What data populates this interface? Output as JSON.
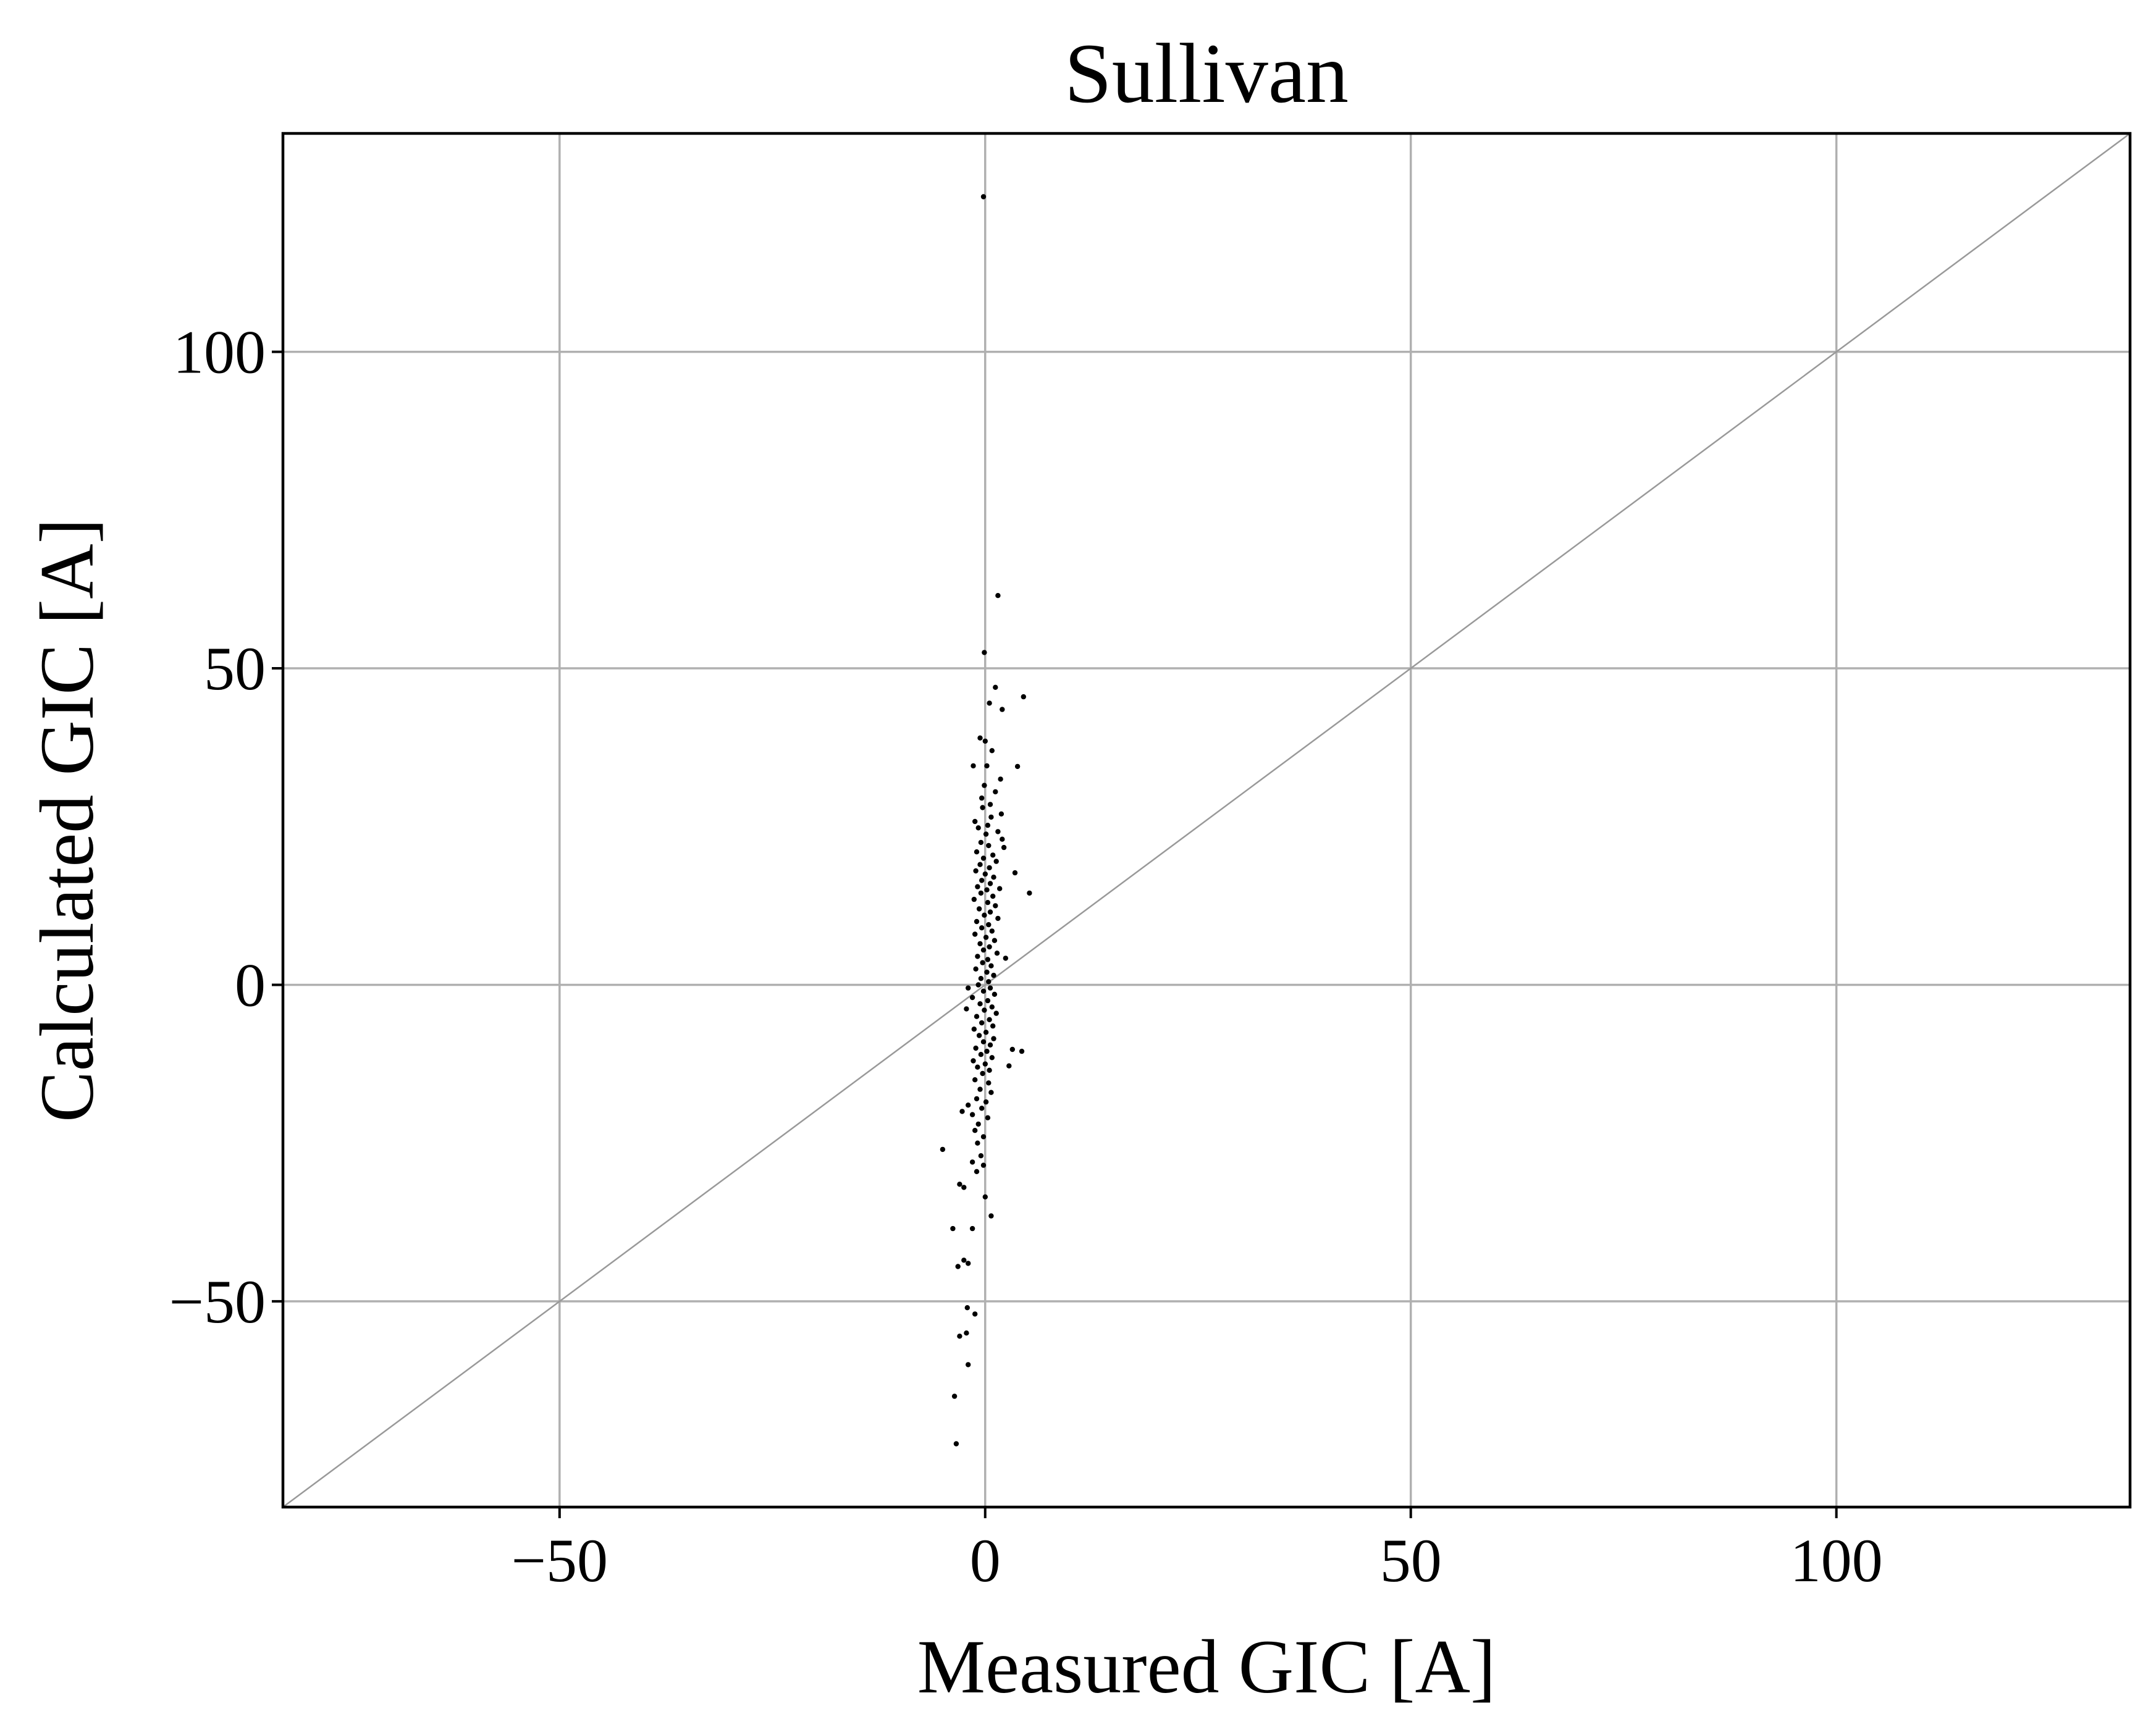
{
  "chart_data": {
    "type": "scatter",
    "title": "Sullivan",
    "xlabel": "Measured GIC [A]",
    "ylabel": "Calculated GIC [A]",
    "xlim": [
      -82.5,
      134.5
    ],
    "ylim": [
      -82.5,
      134.5
    ],
    "xticks": [
      -50,
      0,
      50,
      100
    ],
    "yticks": [
      -50,
      0,
      50,
      100
    ],
    "xtick_labels": [
      "−50",
      "0",
      "50",
      "100"
    ],
    "ytick_labels": [
      "−50",
      "0",
      "50",
      "100"
    ],
    "grid": true,
    "reference_line": {
      "type": "y=x",
      "color": "#999999"
    },
    "series": [
      {
        "marker_color": "#000000",
        "points": [
          [
            -0.2,
            124.5
          ],
          [
            1.5,
            61.5
          ],
          [
            -0.1,
            52.5
          ],
          [
            1.2,
            47.0
          ],
          [
            4.5,
            45.5
          ],
          [
            0.5,
            44.5
          ],
          [
            2.0,
            43.5
          ],
          [
            -0.6,
            39.0
          ],
          [
            0.0,
            38.5
          ],
          [
            0.8,
            37.0
          ],
          [
            3.8,
            34.5
          ],
          [
            -1.4,
            34.6
          ],
          [
            0.2,
            34.6
          ],
          [
            1.8,
            32.5
          ],
          [
            -0.1,
            31.5
          ],
          [
            1.2,
            30.5
          ],
          [
            -0.4,
            29.5
          ],
          [
            0.6,
            28.5
          ],
          [
            -0.3,
            28.0
          ],
          [
            1.9,
            27.0
          ],
          [
            0.7,
            26.5
          ],
          [
            -1.2,
            25.8
          ],
          [
            0.3,
            25.2
          ],
          [
            -0.8,
            24.8
          ],
          [
            1.5,
            24.2
          ],
          [
            0.1,
            23.8
          ],
          [
            2.0,
            23.0
          ],
          [
            -0.5,
            22.5
          ],
          [
            0.4,
            22.0
          ],
          [
            2.2,
            21.7
          ],
          [
            -1.0,
            21.0
          ],
          [
            0.9,
            20.5
          ],
          [
            -0.2,
            20.0
          ],
          [
            1.3,
            19.5
          ],
          [
            -0.6,
            19.0
          ],
          [
            0.5,
            18.5
          ],
          [
            -1.1,
            18.0
          ],
          [
            3.5,
            17.7
          ],
          [
            0.0,
            17.5
          ],
          [
            1.0,
            17.0
          ],
          [
            -0.4,
            16.5
          ],
          [
            0.6,
            16.0
          ],
          [
            -0.9,
            15.5
          ],
          [
            1.7,
            15.2
          ],
          [
            0.2,
            15.0
          ],
          [
            5.2,
            14.5
          ],
          [
            -0.5,
            14.5
          ],
          [
            0.9,
            14.0
          ],
          [
            -1.3,
            13.5
          ],
          [
            0.3,
            13.0
          ],
          [
            1.2,
            12.5
          ],
          [
            -0.7,
            12.0
          ],
          [
            0.6,
            11.5
          ],
          [
            -0.1,
            11.0
          ],
          [
            1.5,
            10.5
          ],
          [
            -1.0,
            10.0
          ],
          [
            0.4,
            9.5
          ],
          [
            -0.4,
            9.0
          ],
          [
            0.8,
            8.5
          ],
          [
            -1.2,
            8.0
          ],
          [
            0.1,
            7.5
          ],
          [
            1.1,
            7.0
          ],
          [
            -0.6,
            6.5
          ],
          [
            0.5,
            6.0
          ],
          [
            -0.2,
            5.5
          ],
          [
            1.4,
            5.0
          ],
          [
            -0.9,
            4.5
          ],
          [
            0.3,
            4.0
          ],
          [
            2.4,
            4.2
          ],
          [
            -0.3,
            3.5
          ],
          [
            0.7,
            3.0
          ],
          [
            -1.1,
            2.5
          ],
          [
            0.2,
            2.0
          ],
          [
            1.0,
            1.5
          ],
          [
            -0.5,
            1.0
          ],
          [
            0.4,
            0.5
          ],
          [
            -2.0,
            -0.5
          ],
          [
            -0.8,
            0.0
          ],
          [
            0.6,
            -0.5
          ],
          [
            -0.2,
            -1.0
          ],
          [
            1.1,
            -1.5
          ],
          [
            -1.5,
            -2.0
          ],
          [
            0.3,
            -2.5
          ],
          [
            -0.6,
            -3.0
          ],
          [
            0.8,
            -3.5
          ],
          [
            -2.2,
            -3.8
          ],
          [
            -0.1,
            -4.0
          ],
          [
            1.3,
            -4.5
          ],
          [
            -1.0,
            -5.0
          ],
          [
            0.5,
            -5.5
          ],
          [
            -0.4,
            -6.0
          ],
          [
            0.9,
            -6.5
          ],
          [
            -1.3,
            -7.0
          ],
          [
            0.1,
            -7.5
          ],
          [
            -0.7,
            -8.0
          ],
          [
            1.0,
            -8.5
          ],
          [
            -0.2,
            -9.0
          ],
          [
            0.6,
            -9.5
          ],
          [
            -1.1,
            -10.0
          ],
          [
            3.2,
            -10.2
          ],
          [
            4.3,
            -10.5
          ],
          [
            0.2,
            -10.5
          ],
          [
            -0.5,
            -11.0
          ],
          [
            0.8,
            -11.5
          ],
          [
            -1.4,
            -12.0
          ],
          [
            0.0,
            -12.5
          ],
          [
            2.8,
            -12.8
          ],
          [
            -0.9,
            -13.0
          ],
          [
            0.5,
            -13.5
          ],
          [
            -0.3,
            -14.0
          ],
          [
            -1.2,
            -15.0
          ],
          [
            0.4,
            -15.5
          ],
          [
            -0.6,
            -16.5
          ],
          [
            0.7,
            -17.0
          ],
          [
            -1.0,
            -18.0
          ],
          [
            0.1,
            -18.5
          ],
          [
            -2.0,
            -19.0
          ],
          [
            -0.4,
            -19.5
          ],
          [
            -2.7,
            -20.0
          ],
          [
            -1.5,
            -20.5
          ],
          [
            0.3,
            -21.0
          ],
          [
            -0.8,
            -22.0
          ],
          [
            -1.2,
            -23.0
          ],
          [
            -0.2,
            -24.0
          ],
          [
            -0.9,
            -25.0
          ],
          [
            -5.0,
            -26.0
          ],
          [
            -0.5,
            -27.0
          ],
          [
            -1.5,
            -28.0
          ],
          [
            -0.2,
            -28.5
          ],
          [
            -1.0,
            -29.5
          ],
          [
            -3.0,
            -31.5
          ],
          [
            -2.5,
            -32.0
          ],
          [
            0.0,
            -33.5
          ],
          [
            0.7,
            -36.5
          ],
          [
            -1.5,
            -38.5
          ],
          [
            -3.8,
            -38.5
          ],
          [
            -2.5,
            -43.5
          ],
          [
            -2.0,
            -44.0
          ],
          [
            -3.2,
            -44.5
          ],
          [
            -2.1,
            -51.0
          ],
          [
            -1.2,
            -52.0
          ],
          [
            -2.2,
            -55.0
          ],
          [
            -3.0,
            -55.5
          ],
          [
            -2.0,
            -60.0
          ],
          [
            -3.6,
            -65.0
          ],
          [
            -3.4,
            -72.5
          ]
        ]
      }
    ]
  }
}
